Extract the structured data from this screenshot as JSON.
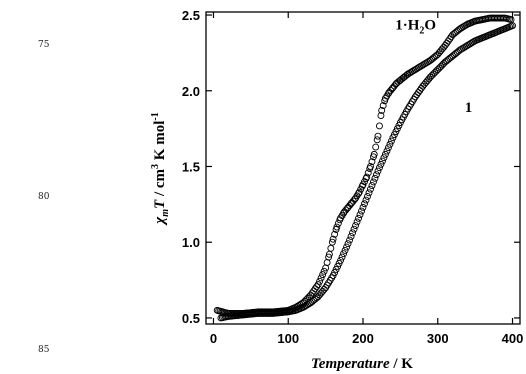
{
  "margin_numbers": [
    "75",
    "80",
    "85"
  ],
  "chart_data": {
    "type": "scatter",
    "xlabel_italic": "Temperature",
    "xlabel_unit": " / K",
    "ylabel": "χmT / cm3 K mol-1",
    "xlim": [
      -10,
      410
    ],
    "ylim": [
      0.46,
      2.52
    ],
    "xticks": [
      0,
      100,
      200,
      300,
      400
    ],
    "yticks": [
      0.5,
      1.0,
      1.5,
      2.0,
      2.5
    ],
    "ytick_labels": [
      "0.5",
      "1.0",
      "1.5",
      "2.0",
      "2.5"
    ],
    "grid": false,
    "series": [
      {
        "name": "1·H2O",
        "marker": "open-circle",
        "x": [
          5,
          20,
          40,
          60,
          80,
          100,
          110,
          120,
          130,
          140,
          150,
          155,
          160,
          165,
          170,
          175,
          180,
          185,
          190,
          195,
          200,
          205,
          210,
          215,
          220,
          225,
          230,
          235,
          240,
          245,
          250,
          255,
          260,
          270,
          280,
          290,
          300,
          310,
          320,
          330,
          340,
          350,
          360,
          370,
          380,
          390,
          398
        ],
        "y": [
          0.55,
          0.53,
          0.53,
          0.54,
          0.54,
          0.55,
          0.57,
          0.6,
          0.65,
          0.72,
          0.83,
          0.92,
          1.02,
          1.1,
          1.16,
          1.2,
          1.23,
          1.26,
          1.29,
          1.33,
          1.38,
          1.43,
          1.5,
          1.58,
          1.7,
          1.87,
          1.95,
          1.99,
          2.02,
          2.05,
          2.07,
          2.09,
          2.11,
          2.14,
          2.17,
          2.2,
          2.24,
          2.3,
          2.37,
          2.41,
          2.44,
          2.46,
          2.47,
          2.48,
          2.48,
          2.48,
          2.47
        ]
      },
      {
        "name": "1",
        "marker": "open-circle",
        "x": [
          10,
          20,
          40,
          60,
          80,
          100,
          110,
          120,
          130,
          140,
          150,
          160,
          170,
          180,
          190,
          200,
          210,
          220,
          230,
          240,
          250,
          260,
          270,
          280,
          290,
          300,
          310,
          320,
          330,
          340,
          350,
          360,
          370,
          380,
          390,
          400
        ],
        "y": [
          0.5,
          0.51,
          0.52,
          0.53,
          0.53,
          0.54,
          0.55,
          0.57,
          0.6,
          0.64,
          0.7,
          0.78,
          0.88,
          0.99,
          1.11,
          1.23,
          1.35,
          1.47,
          1.58,
          1.69,
          1.79,
          1.88,
          1.96,
          2.03,
          2.09,
          2.14,
          2.19,
          2.23,
          2.27,
          2.3,
          2.33,
          2.35,
          2.37,
          2.39,
          2.41,
          2.43
        ]
      }
    ],
    "annotations": [
      {
        "series": "1·H2O",
        "at_x": 310,
        "at_y": 2.34
      },
      {
        "series": "1",
        "at_x": 320,
        "at_y": 1.9
      }
    ]
  }
}
